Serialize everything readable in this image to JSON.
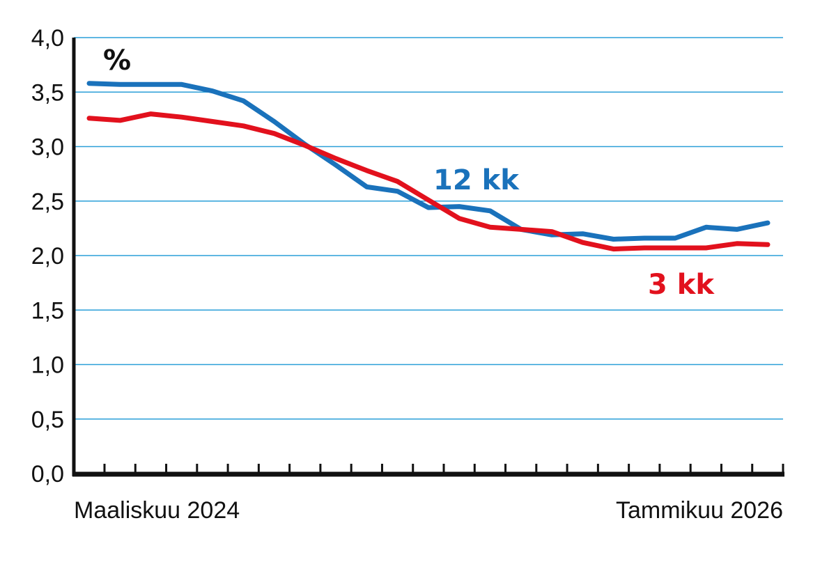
{
  "chart_data": {
    "type": "line",
    "unit": "%",
    "x_start_label": "Maaliskuu 2024",
    "x_end_label": "Tammikuu 2026",
    "x": [
      "2024-03",
      "2024-04",
      "2024-05",
      "2024-06",
      "2024-07",
      "2024-08",
      "2024-09",
      "2024-10",
      "2024-11",
      "2024-12",
      "2025-01",
      "2025-02",
      "2025-03",
      "2025-04",
      "2025-05",
      "2025-06",
      "2025-07",
      "2025-08",
      "2025-09",
      "2025-10",
      "2025-11",
      "2025-12",
      "2026-01"
    ],
    "ylim": [
      0,
      4.0
    ],
    "yticks": [
      "0,0",
      "0,5",
      "1,0",
      "1,5",
      "2,0",
      "2,5",
      "3,0",
      "3,5",
      "4,0"
    ],
    "grid": true,
    "series": [
      {
        "name": "12 kk",
        "color": "#1a72bb",
        "values": [
          3.58,
          3.57,
          3.57,
          3.57,
          3.51,
          3.42,
          3.23,
          3.02,
          2.83,
          2.63,
          2.59,
          2.44,
          2.45,
          2.41,
          2.24,
          2.19,
          2.2,
          2.15,
          2.16,
          2.16,
          2.26,
          2.24,
          2.3
        ]
      },
      {
        "name": "3 kk",
        "color": "#e2111d",
        "values": [
          3.26,
          3.24,
          3.3,
          3.27,
          3.23,
          3.19,
          3.12,
          3.01,
          2.89,
          2.78,
          2.68,
          2.51,
          2.34,
          2.26,
          2.24,
          2.22,
          2.12,
          2.06,
          2.07,
          2.07,
          2.07,
          2.11,
          2.1
        ]
      }
    ]
  }
}
